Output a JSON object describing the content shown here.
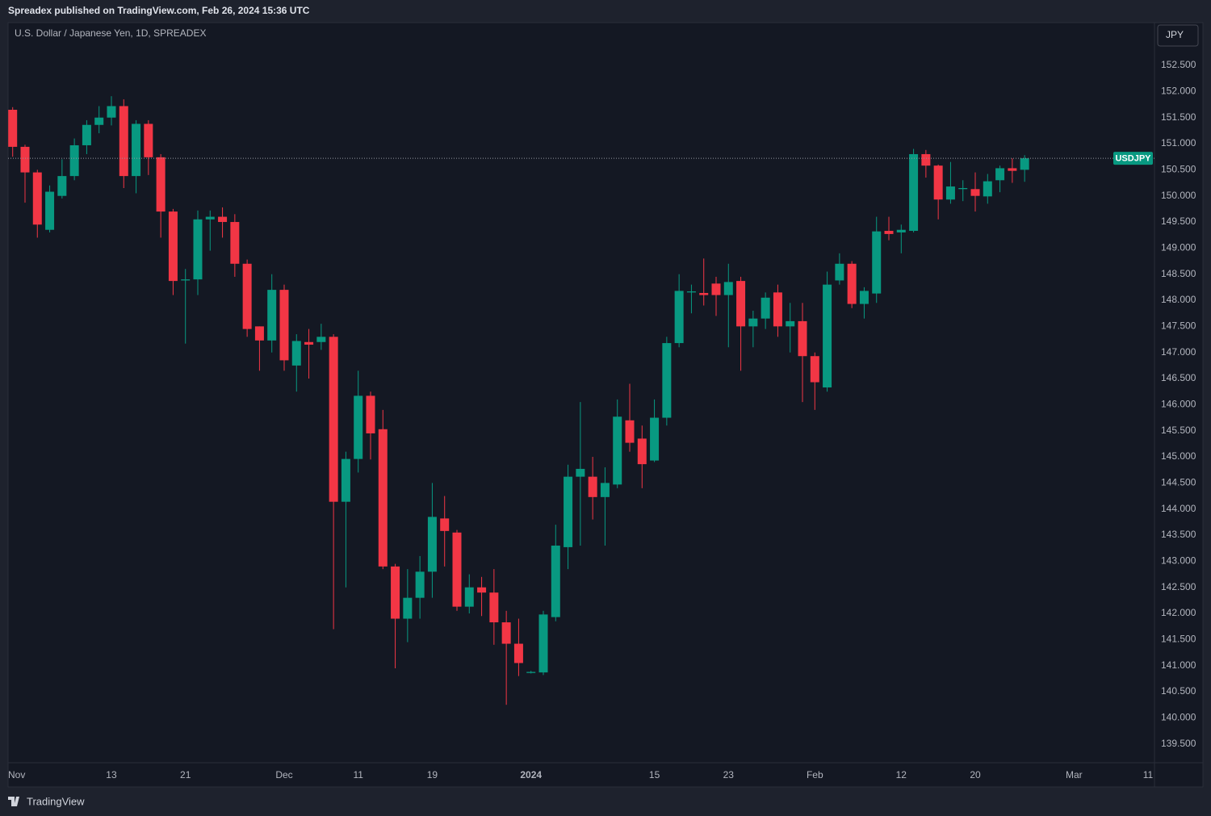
{
  "header": {
    "text": "Spreadex published on TradingView.com, Feb 26, 2024 15:36 UTC"
  },
  "footer": {
    "brand": "TradingView"
  },
  "chart_data": {
    "type": "candlestick",
    "title": "U.S. Dollar / Japanese Yen, 1D, SPREADEX",
    "currency": "JPY",
    "up_color": "#089981",
    "down_color": "#f23645",
    "grid": false,
    "x": [
      "2023-11-01",
      "2023-11-02",
      "2023-11-03",
      "2023-11-06",
      "2023-11-07",
      "2023-11-08",
      "2023-11-09",
      "2023-11-10",
      "2023-11-13",
      "2023-11-14",
      "2023-11-15",
      "2023-11-16",
      "2023-11-17",
      "2023-11-20",
      "2023-11-21",
      "2023-11-22",
      "2023-11-23",
      "2023-11-24",
      "2023-11-27",
      "2023-11-28",
      "2023-11-29",
      "2023-11-30",
      "2023-12-01",
      "2023-12-04",
      "2023-12-05",
      "2023-12-06",
      "2023-12-07",
      "2023-12-08",
      "2023-12-11",
      "2023-12-12",
      "2023-12-13",
      "2023-12-14",
      "2023-12-15",
      "2023-12-18",
      "2023-12-19",
      "2023-12-20",
      "2023-12-21",
      "2023-12-22",
      "2023-12-26",
      "2023-12-27",
      "2023-12-28",
      "2023-12-29",
      "2024-01-01",
      "2024-01-02",
      "2024-01-03",
      "2024-01-04",
      "2024-01-05",
      "2024-01-08",
      "2024-01-09",
      "2024-01-10",
      "2024-01-11",
      "2024-01-12",
      "2024-01-15",
      "2024-01-16",
      "2024-01-17",
      "2024-01-18",
      "2024-01-19",
      "2024-01-22",
      "2024-01-23",
      "2024-01-24",
      "2024-01-25",
      "2024-01-26",
      "2024-01-29",
      "2024-01-30",
      "2024-01-31",
      "2024-02-01",
      "2024-02-02",
      "2024-02-05",
      "2024-02-06",
      "2024-02-07",
      "2024-02-08",
      "2024-02-09",
      "2024-02-12",
      "2024-02-13",
      "2024-02-14",
      "2024-02-15",
      "2024-02-16",
      "2024-02-19",
      "2024-02-20",
      "2024-02-21",
      "2024-02-22",
      "2024-02-23",
      "2024-02-26"
    ],
    "series": [
      {
        "name": "USDJPY",
        "open": [
          151.65,
          150.94,
          150.45,
          149.35,
          150.0,
          150.38,
          150.97,
          151.36,
          151.5,
          151.72,
          150.38,
          151.38,
          150.74,
          149.7,
          148.38,
          148.4,
          149.55,
          149.6,
          149.5,
          148.7,
          147.5,
          147.23,
          148.2,
          146.75,
          147.2,
          147.2,
          147.3,
          144.14,
          144.96,
          146.17,
          145.53,
          142.9,
          141.9,
          142.3,
          142.8,
          143.82,
          143.55,
          142.13,
          142.5,
          142.4,
          141.83,
          141.42,
          140.86,
          140.87,
          141.93,
          143.27,
          144.62,
          144.62,
          144.23,
          144.47,
          145.7,
          145.35,
          144.93,
          145.75,
          147.18,
          148.15,
          148.14,
          148.32,
          148.1,
          148.37,
          147.5,
          147.65,
          148.15,
          147.5,
          147.6,
          146.93,
          146.33,
          148.38,
          148.7,
          147.93,
          148.13,
          149.33,
          149.3,
          149.33,
          150.8,
          150.58,
          149.93,
          150.13,
          150.13,
          149.99,
          150.3,
          150.53,
          150.5
        ],
        "high": [
          151.7,
          150.98,
          150.5,
          150.2,
          150.7,
          151.1,
          151.45,
          151.72,
          151.91,
          151.85,
          151.45,
          151.45,
          150.8,
          149.75,
          148.6,
          149.72,
          149.72,
          149.78,
          149.65,
          148.78,
          147.5,
          148.5,
          148.3,
          147.35,
          147.45,
          147.55,
          147.35,
          145.1,
          146.65,
          146.25,
          145.9,
          142.95,
          142.85,
          143.1,
          144.5,
          144.25,
          143.6,
          142.75,
          142.7,
          142.85,
          142.05,
          141.9,
          140.9,
          142.05,
          143.7,
          144.85,
          146.05,
          145.0,
          144.8,
          146.1,
          146.4,
          145.6,
          146.1,
          147.3,
          148.5,
          148.3,
          148.8,
          148.45,
          148.7,
          148.45,
          147.8,
          148.15,
          148.3,
          147.95,
          147.95,
          147.0,
          148.55,
          148.9,
          148.75,
          148.25,
          149.6,
          149.6,
          149.45,
          150.9,
          150.88,
          150.6,
          150.65,
          150.3,
          150.45,
          150.42,
          150.58,
          150.72,
          150.78
        ],
        "low": [
          150.75,
          149.87,
          149.2,
          149.3,
          149.95,
          150.3,
          150.8,
          151.2,
          151.35,
          150.15,
          150.05,
          150.4,
          149.2,
          148.1,
          147.17,
          148.1,
          148.95,
          149.2,
          148.45,
          147.3,
          146.65,
          147.0,
          146.65,
          146.25,
          146.5,
          147.05,
          141.7,
          142.5,
          144.7,
          144.95,
          142.85,
          140.95,
          141.45,
          141.9,
          142.3,
          142.9,
          142.05,
          142.0,
          141.95,
          141.4,
          140.25,
          140.8,
          140.85,
          140.82,
          141.85,
          142.85,
          143.3,
          143.8,
          143.3,
          144.4,
          145.1,
          144.4,
          144.9,
          145.6,
          147.1,
          147.75,
          147.9,
          147.7,
          147.1,
          146.65,
          147.1,
          147.45,
          147.3,
          147.0,
          146.05,
          145.9,
          146.25,
          148.3,
          147.85,
          147.65,
          147.95,
          149.15,
          148.9,
          149.3,
          150.35,
          149.55,
          149.85,
          149.9,
          149.7,
          149.85,
          150.07,
          150.25,
          150.27
        ],
        "close": [
          150.94,
          150.45,
          149.45,
          150.08,
          150.38,
          150.97,
          151.36,
          151.5,
          151.72,
          150.38,
          151.38,
          150.74,
          149.7,
          148.37,
          148.4,
          149.55,
          149.6,
          149.5,
          148.7,
          147.45,
          147.23,
          148.2,
          146.85,
          147.22,
          147.15,
          147.3,
          144.14,
          144.96,
          146.17,
          145.45,
          142.9,
          141.9,
          142.3,
          142.8,
          143.85,
          143.58,
          142.13,
          142.5,
          142.4,
          141.83,
          141.42,
          141.05,
          140.88,
          141.98,
          143.3,
          144.62,
          144.77,
          144.23,
          144.5,
          145.77,
          145.27,
          144.86,
          145.75,
          147.18,
          148.18,
          148.17,
          148.1,
          148.1,
          148.35,
          147.5,
          147.65,
          148.05,
          147.5,
          147.6,
          146.93,
          146.43,
          148.3,
          148.7,
          147.93,
          148.18,
          149.32,
          149.27,
          149.35,
          150.8,
          150.58,
          149.93,
          150.18,
          150.15,
          150.0,
          150.28,
          150.53,
          150.48,
          150.72
        ]
      }
    ],
    "xticks": [
      {
        "value": "2023-11-01",
        "label": "Nov"
      },
      {
        "value": "2023-11-13",
        "label": "13"
      },
      {
        "value": "2023-11-21",
        "label": "21"
      },
      {
        "value": "2023-12-01",
        "label": "Dec"
      },
      {
        "value": "2023-12-11",
        "label": "11"
      },
      {
        "value": "2023-12-19",
        "label": "19"
      },
      {
        "value": "2024-01-01",
        "label": "2024"
      },
      {
        "value": "2024-01-15",
        "label": "15"
      },
      {
        "value": "2024-01-23",
        "label": "23"
      },
      {
        "value": "2024-02-01",
        "label": "Feb"
      },
      {
        "value": "2024-02-12",
        "label": "12"
      },
      {
        "value": "2024-02-20",
        "label": "20"
      },
      {
        "value": "2024-03-01",
        "label": "Mar"
      },
      {
        "value": "2024-03-11",
        "label": "11"
      }
    ],
    "ylim": [
      139.14,
      153.32
    ],
    "yticks": [
      {
        "value": 139.5,
        "label": "139.500"
      },
      {
        "value": 140,
        "label": "140.000"
      },
      {
        "value": 140.5,
        "label": "140.500"
      },
      {
        "value": 141,
        "label": "141.000"
      },
      {
        "value": 141.5,
        "label": "141.500"
      },
      {
        "value": 142,
        "label": "142.000"
      },
      {
        "value": 142.5,
        "label": "142.500"
      },
      {
        "value": 143,
        "label": "143.000"
      },
      {
        "value": 143.5,
        "label": "143.500"
      },
      {
        "value": 144,
        "label": "144.000"
      },
      {
        "value": 144.5,
        "label": "144.500"
      },
      {
        "value": 145,
        "label": "145.000"
      },
      {
        "value": 145.5,
        "label": "145.500"
      },
      {
        "value": 146,
        "label": "146.000"
      },
      {
        "value": 146.5,
        "label": "146.500"
      },
      {
        "value": 147,
        "label": "147.000"
      },
      {
        "value": 147.5,
        "label": "147.500"
      },
      {
        "value": 148,
        "label": "148.000"
      },
      {
        "value": 148.5,
        "label": "148.500"
      },
      {
        "value": 149,
        "label": "149.000"
      },
      {
        "value": 149.5,
        "label": "149.500"
      },
      {
        "value": 150,
        "label": "150.000"
      },
      {
        "value": 150.5,
        "label": "150.500"
      },
      {
        "value": 151,
        "label": "151.000"
      },
      {
        "value": 151.5,
        "label": "151.500"
      },
      {
        "value": 152,
        "label": "152.000"
      },
      {
        "value": 152.5,
        "label": "152.500"
      }
    ]
  }
}
